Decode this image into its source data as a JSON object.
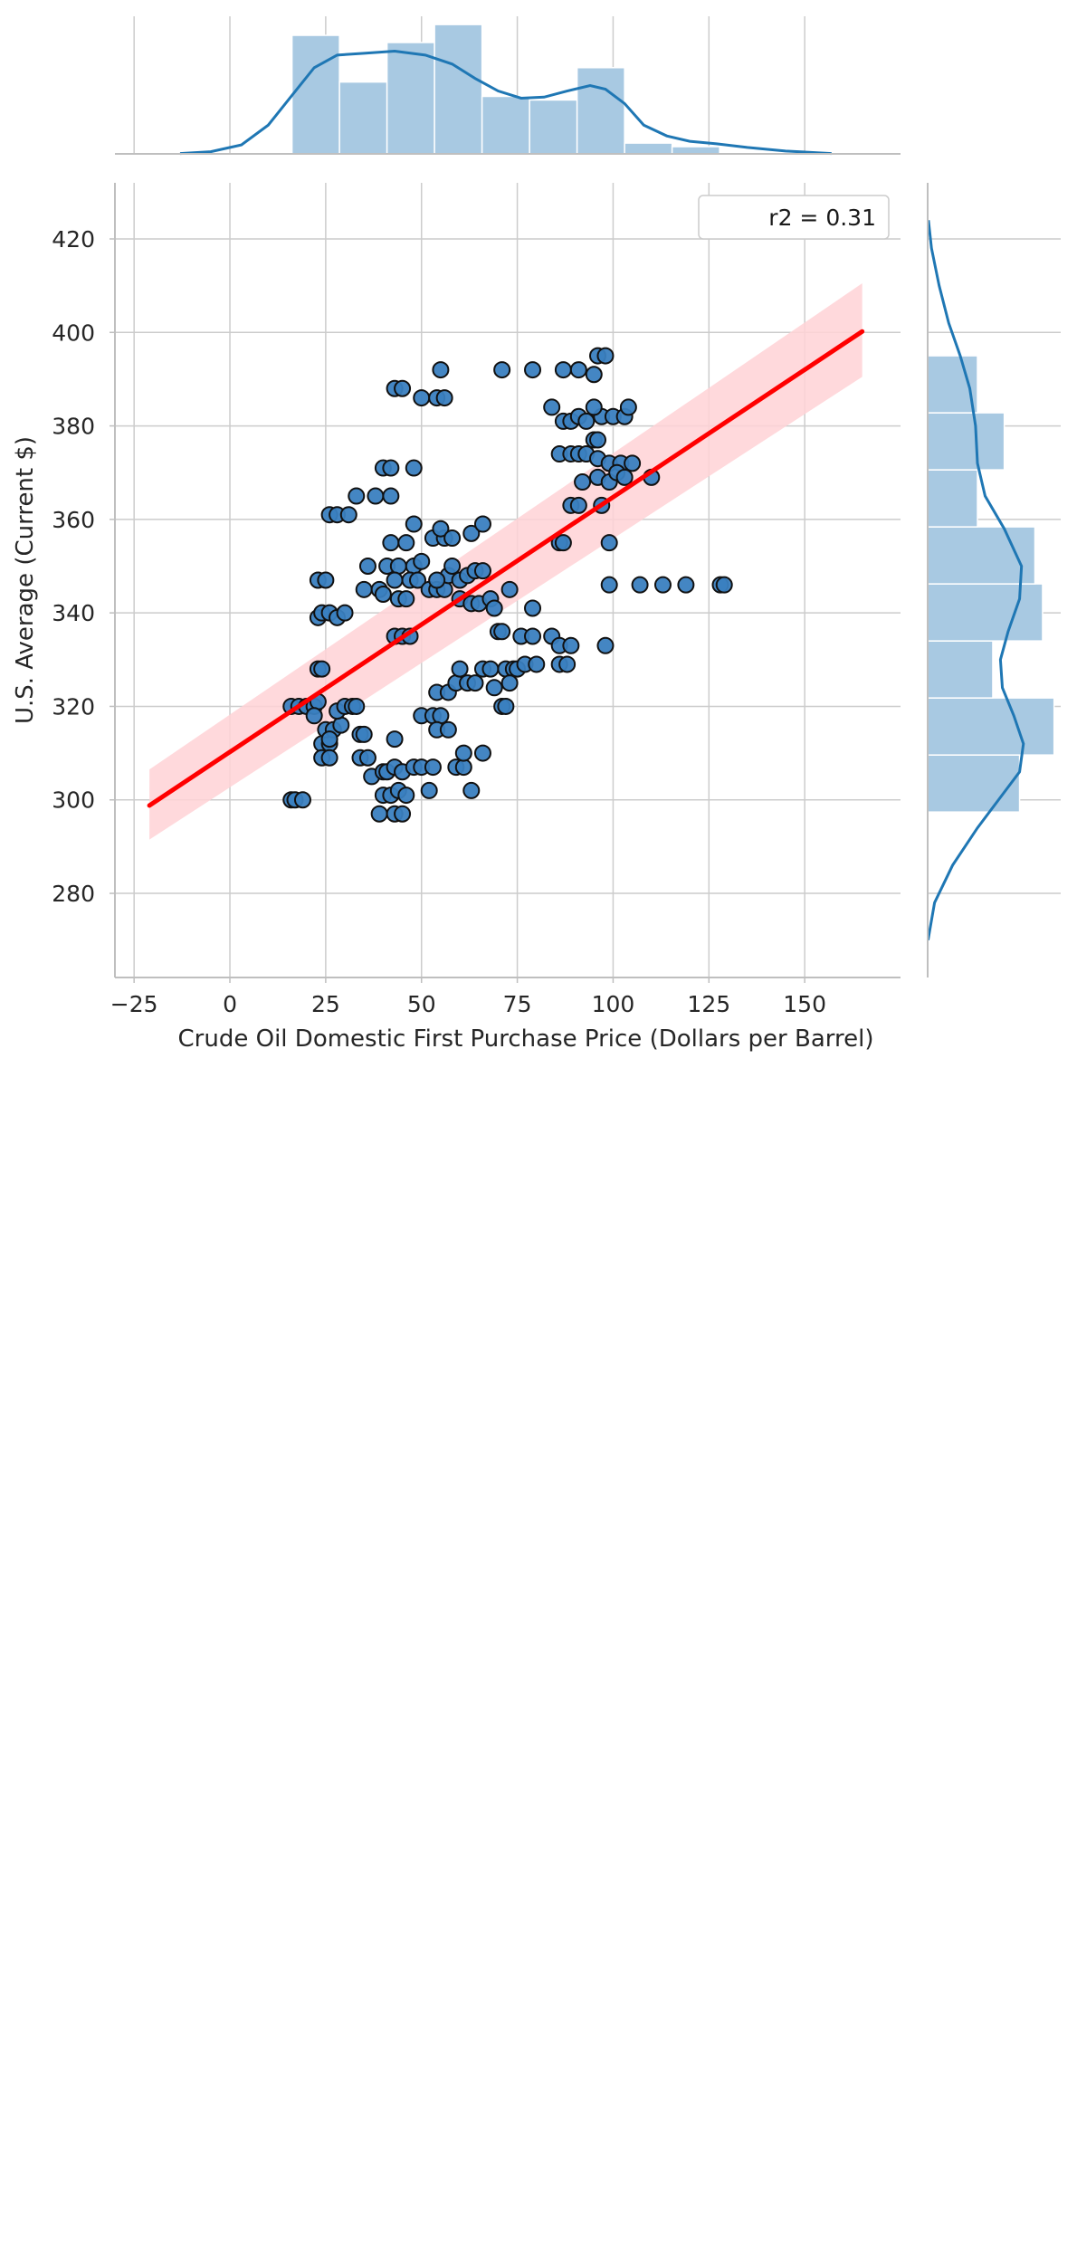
{
  "chart_data": {
    "type": "scatter",
    "title": "",
    "xlabel": "Crude Oil Domestic First Purchase Price (Dollars per Barrel)",
    "ylabel": "U.S. Average (Current $)",
    "xlim": [
      -30,
      175
    ],
    "ylim": [
      262,
      432
    ],
    "xticks": [
      -25,
      0,
      25,
      50,
      75,
      100,
      125,
      150
    ],
    "xtick_labels": [
      "−25",
      "0",
      "25",
      "50",
      "75",
      "100",
      "125",
      "150"
    ],
    "yticks": [
      280,
      300,
      320,
      340,
      360,
      380,
      400,
      420
    ],
    "ytick_labels": [
      "280",
      "300",
      "320",
      "340",
      "360",
      "380",
      "400",
      "420"
    ],
    "grid": true,
    "legend": {
      "text": "r2 = 0.31",
      "location": "top-right"
    },
    "colors": {
      "points": "#3a7fc0",
      "point_edge": "#111111",
      "regression": "#ff0000",
      "ci_band": "#ffd2d6",
      "hist": "#a8c9e2",
      "kde": "#1f77b4"
    },
    "regression": {
      "x": [
        -21,
        165
      ],
      "y": [
        298.8,
        400.2
      ],
      "ci_lower_at_ends": [
        291.5,
        390.5
      ],
      "ci_upper_at_ends": [
        306.5,
        410.5
      ]
    },
    "points": [
      [
        16,
        300
      ],
      [
        17,
        300
      ],
      [
        19,
        300
      ],
      [
        16,
        320
      ],
      [
        18,
        320
      ],
      [
        20,
        320
      ],
      [
        22,
        320
      ],
      [
        23,
        321
      ],
      [
        22,
        318
      ],
      [
        24,
        312
      ],
      [
        26,
        312
      ],
      [
        24,
        309
      ],
      [
        26,
        309
      ],
      [
        25,
        315
      ],
      [
        27,
        315
      ],
      [
        29,
        316
      ],
      [
        26,
        313
      ],
      [
        28,
        319
      ],
      [
        30,
        320
      ],
      [
        32,
        320
      ],
      [
        33,
        320
      ],
      [
        23,
        328
      ],
      [
        24,
        328
      ],
      [
        23,
        339
      ],
      [
        24,
        340
      ],
      [
        26,
        340
      ],
      [
        28,
        339
      ],
      [
        30,
        340
      ],
      [
        23,
        347
      ],
      [
        25,
        347
      ],
      [
        26,
        361
      ],
      [
        28,
        361
      ],
      [
        31,
        361
      ],
      [
        33,
        365
      ],
      [
        34,
        314
      ],
      [
        35,
        314
      ],
      [
        34,
        309
      ],
      [
        36,
        309
      ],
      [
        37,
        305
      ],
      [
        40,
        306
      ],
      [
        39,
        297
      ],
      [
        40,
        301
      ],
      [
        42,
        301
      ],
      [
        43,
        297
      ],
      [
        45,
        297
      ],
      [
        44,
        302
      ],
      [
        46,
        301
      ],
      [
        41,
        306
      ],
      [
        43,
        307
      ],
      [
        45,
        306
      ],
      [
        48,
        307
      ],
      [
        50,
        307
      ],
      [
        52,
        302
      ],
      [
        43,
        313
      ],
      [
        50,
        318
      ],
      [
        53,
        318
      ],
      [
        55,
        318
      ],
      [
        54,
        315
      ],
      [
        57,
        315
      ],
      [
        53,
        307
      ],
      [
        59,
        307
      ],
      [
        61,
        307
      ],
      [
        61,
        310
      ],
      [
        66,
        310
      ],
      [
        63,
        302
      ],
      [
        43,
        335
      ],
      [
        45,
        335
      ],
      [
        47,
        335
      ],
      [
        44,
        343
      ],
      [
        46,
        343
      ],
      [
        36,
        350
      ],
      [
        41,
        350
      ],
      [
        44,
        350
      ],
      [
        48,
        350
      ],
      [
        50,
        351
      ],
      [
        35,
        345
      ],
      [
        39,
        345
      ],
      [
        43,
        347
      ],
      [
        47,
        347
      ],
      [
        49,
        347
      ],
      [
        42,
        355
      ],
      [
        46,
        355
      ],
      [
        48,
        359
      ],
      [
        53,
        356
      ],
      [
        56,
        356
      ],
      [
        55,
        358
      ],
      [
        58,
        356
      ],
      [
        63,
        357
      ],
      [
        66,
        359
      ],
      [
        40,
        344
      ],
      [
        52,
        345
      ],
      [
        54,
        345
      ],
      [
        56,
        345
      ],
      [
        57,
        348
      ],
      [
        54,
        347
      ],
      [
        58,
        350
      ],
      [
        60,
        347
      ],
      [
        62,
        348
      ],
      [
        64,
        349
      ],
      [
        66,
        349
      ],
      [
        60,
        343
      ],
      [
        63,
        342
      ],
      [
        65,
        342
      ],
      [
        68,
        343
      ],
      [
        38,
        365
      ],
      [
        40,
        371
      ],
      [
        42,
        371
      ],
      [
        42,
        365
      ],
      [
        48,
        371
      ],
      [
        43,
        388
      ],
      [
        45,
        388
      ],
      [
        50,
        386
      ],
      [
        54,
        386
      ],
      [
        56,
        386
      ],
      [
        55,
        392
      ],
      [
        54,
        323
      ],
      [
        57,
        323
      ],
      [
        59,
        325
      ],
      [
        60,
        328
      ],
      [
        62,
        325
      ],
      [
        64,
        325
      ],
      [
        66,
        328
      ],
      [
        68,
        328
      ],
      [
        69,
        324
      ],
      [
        71,
        320
      ],
      [
        72,
        320
      ],
      [
        72,
        328
      ],
      [
        74,
        328
      ],
      [
        73,
        325
      ],
      [
        75,
        328
      ],
      [
        77,
        329
      ],
      [
        70,
        336
      ],
      [
        71,
        336
      ],
      [
        76,
        335
      ],
      [
        79,
        335
      ],
      [
        84,
        335
      ],
      [
        86,
        333
      ],
      [
        89,
        333
      ],
      [
        80,
        329
      ],
      [
        86,
        329
      ],
      [
        88,
        329
      ],
      [
        98,
        333
      ],
      [
        69,
        341
      ],
      [
        73,
        345
      ],
      [
        79,
        341
      ],
      [
        71,
        392
      ],
      [
        79,
        392
      ],
      [
        87,
        392
      ],
      [
        91,
        392
      ],
      [
        84,
        384
      ],
      [
        87,
        381
      ],
      [
        89,
        381
      ],
      [
        91,
        382
      ],
      [
        93,
        381
      ],
      [
        95,
        377
      ],
      [
        96,
        377
      ],
      [
        97,
        382
      ],
      [
        95,
        384
      ],
      [
        96,
        395
      ],
      [
        98,
        395
      ],
      [
        100,
        382
      ],
      [
        103,
        382
      ],
      [
        104,
        384
      ],
      [
        95,
        391
      ],
      [
        86,
        374
      ],
      [
        89,
        374
      ],
      [
        91,
        374
      ],
      [
        93,
        374
      ],
      [
        96,
        373
      ],
      [
        99,
        372
      ],
      [
        102,
        372
      ],
      [
        105,
        372
      ],
      [
        92,
        368
      ],
      [
        96,
        369
      ],
      [
        99,
        368
      ],
      [
        101,
        370
      ],
      [
        103,
        369
      ],
      [
        110,
        369
      ],
      [
        89,
        363
      ],
      [
        91,
        363
      ],
      [
        97,
        363
      ],
      [
        86,
        355
      ],
      [
        87,
        355
      ],
      [
        99,
        355
      ],
      [
        99,
        346
      ],
      [
        107,
        346
      ],
      [
        113,
        346
      ],
      [
        119,
        346
      ],
      [
        128,
        346
      ],
      [
        129,
        346
      ]
    ],
    "marginal_x": {
      "bin_edges": [
        16.2,
        28.6,
        41.0,
        53.4,
        65.8,
        78.2,
        90.6,
        103.0,
        115.4,
        127.8
      ],
      "counts": [
        33,
        20,
        31,
        36,
        16,
        15,
        24,
        3,
        2
      ],
      "kde": [
        [
          -13,
          0.1
        ],
        [
          -5,
          0.6
        ],
        [
          3,
          2.5
        ],
        [
          10,
          8
        ],
        [
          16,
          16
        ],
        [
          22,
          24
        ],
        [
          28,
          27.5
        ],
        [
          35,
          28
        ],
        [
          43,
          28.6
        ],
        [
          51,
          27.5
        ],
        [
          58,
          25
        ],
        [
          64,
          21
        ],
        [
          70,
          17.5
        ],
        [
          76,
          15.5
        ],
        [
          82,
          15.8
        ],
        [
          88,
          17.5
        ],
        [
          94,
          19
        ],
        [
          98,
          18
        ],
        [
          103,
          14
        ],
        [
          108,
          8
        ],
        [
          114,
          5
        ],
        [
          120,
          3.5
        ],
        [
          127,
          2.8
        ],
        [
          135,
          1.8
        ],
        [
          145,
          0.8
        ],
        [
          157,
          0.1
        ]
      ]
    },
    "marginal_y": {
      "bin_edges": [
        297.4,
        309.6,
        321.8,
        334.0,
        346.2,
        358.4,
        370.6,
        382.8,
        395.0
      ],
      "counts": [
        24,
        33,
        17,
        30,
        28,
        13,
        20,
        13
      ],
      "kde": [
        [
          270,
          0.1
        ],
        [
          278,
          1.8
        ],
        [
          286,
          6.5
        ],
        [
          294,
          13
        ],
        [
          300,
          18.5
        ],
        [
          306,
          24
        ],
        [
          312,
          25
        ],
        [
          318,
          22.5
        ],
        [
          324,
          19.5
        ],
        [
          330,
          19
        ],
        [
          336,
          21
        ],
        [
          343,
          24
        ],
        [
          350,
          24.5
        ],
        [
          358,
          20
        ],
        [
          365,
          15
        ],
        [
          372,
          13
        ],
        [
          380,
          12.5
        ],
        [
          388,
          11
        ],
        [
          395,
          8.5
        ],
        [
          402,
          5.5
        ],
        [
          410,
          3
        ],
        [
          418,
          1
        ],
        [
          424,
          0.2
        ]
      ]
    }
  }
}
